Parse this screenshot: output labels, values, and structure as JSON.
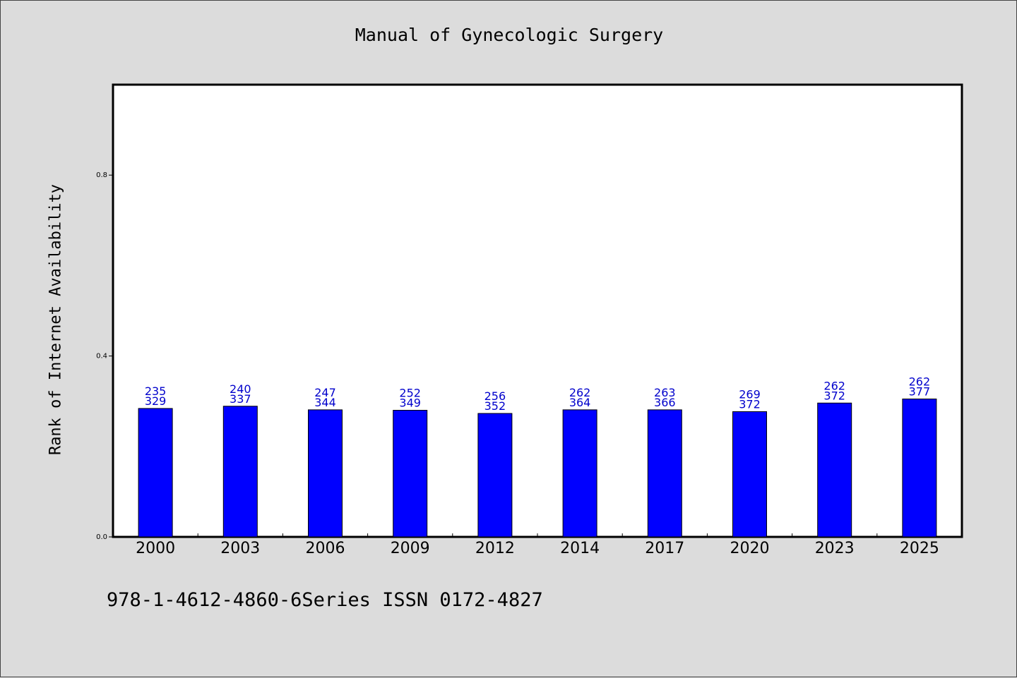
{
  "chart_data": {
    "type": "bar",
    "title": "Manual of Gynecologic Surgery",
    "xlabel": "",
    "ylabel": "Rank of Internet Availability",
    "ylim": [
      0,
      1.0
    ],
    "yticks": [
      0.0,
      0.4,
      0.8
    ],
    "ytick_labels": [
      "0.0",
      "0.4",
      "0.8"
    ],
    "categories": [
      "2000",
      "2003",
      "2006",
      "2009",
      "2012",
      "2014",
      "2017",
      "2020",
      "2023",
      "2025"
    ],
    "values": [
      0.284,
      0.289,
      0.281,
      0.28,
      0.273,
      0.281,
      0.281,
      0.277,
      0.296,
      0.305
    ],
    "bar_labels_top": [
      "235",
      "240",
      "247",
      "252",
      "256",
      "262",
      "263",
      "269",
      "262",
      "262"
    ],
    "bar_labels_bottom": [
      "329",
      "337",
      "344",
      "349",
      "352",
      "364",
      "366",
      "372",
      "372",
      "377"
    ],
    "bar_color": "#0000ff",
    "label_color": "#0000cc",
    "grid": false,
    "legend": "none"
  },
  "footer": {
    "text": "978-1-4612-4860-6Series ISSN 0172-4827"
  }
}
